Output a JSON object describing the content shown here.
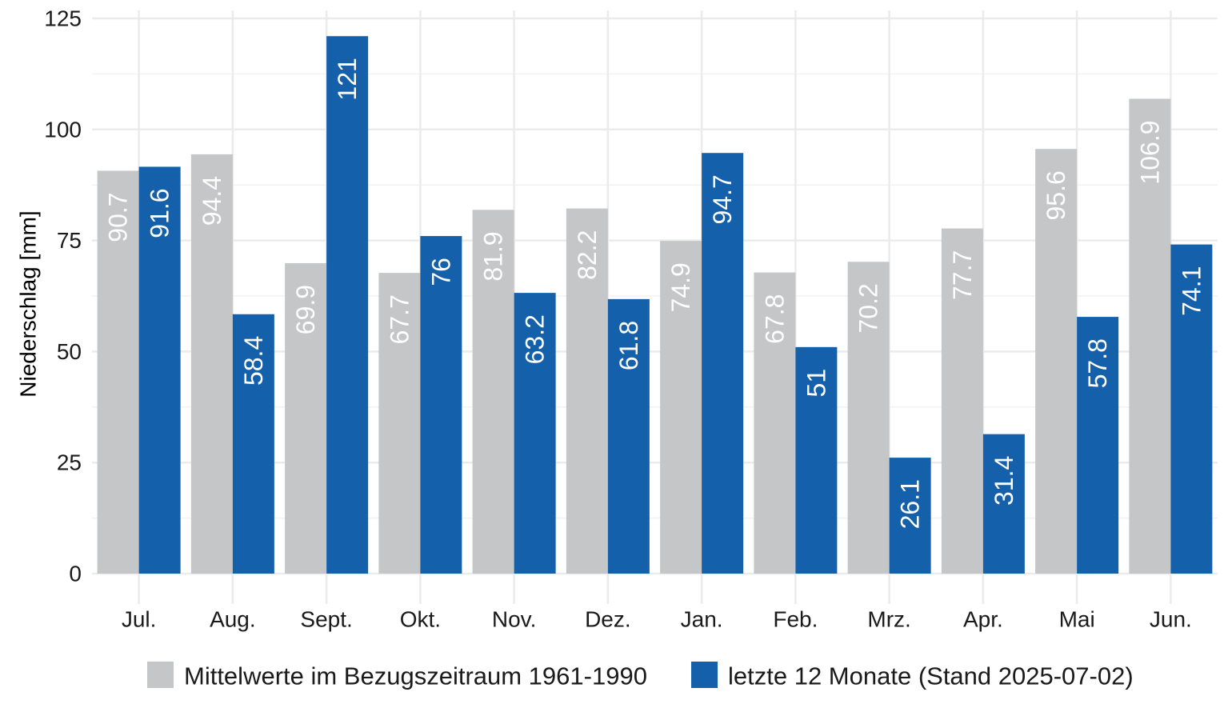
{
  "chart_data": {
    "type": "bar",
    "title": "",
    "xlabel": "",
    "ylabel": "Niederschlag [mm]",
    "ylim": [
      0,
      125
    ],
    "yticks": [
      0,
      25,
      50,
      75,
      100,
      125
    ],
    "grid": true,
    "legend_position": "bottom",
    "categories": [
      "Jul.",
      "Aug.",
      "Sept.",
      "Okt.",
      "Nov.",
      "Dez.",
      "Jan.",
      "Feb.",
      "Mrz.",
      "Apr.",
      "Mai",
      "Jun."
    ],
    "series": [
      {
        "name": "Mittelwerte im Bezugszeitraum 1961-1990",
        "color": "#c4c6c7",
        "values": [
          90.7,
          94.4,
          69.9,
          67.7,
          81.9,
          82.2,
          74.9,
          67.8,
          70.2,
          77.7,
          95.6,
          106.9
        ],
        "labels": [
          "90.7",
          "94.4",
          "69.9",
          "67.7",
          "81.9",
          "82.2",
          "74.9",
          "67.8",
          "70.2",
          "77.7",
          "95.6",
          "106.9"
        ]
      },
      {
        "name": "letzte 12 Monate (Stand 2025-07-02)",
        "color": "#1560ab",
        "values": [
          91.6,
          58.4,
          121,
          76,
          63.2,
          61.8,
          94.7,
          51,
          26.1,
          31.4,
          57.8,
          74.1
        ],
        "labels": [
          "91.6",
          "58.4",
          "121",
          "76",
          "63.2",
          "61.8",
          "94.7",
          "51",
          "26.1",
          "31.4",
          "57.8",
          "74.1"
        ]
      }
    ]
  }
}
